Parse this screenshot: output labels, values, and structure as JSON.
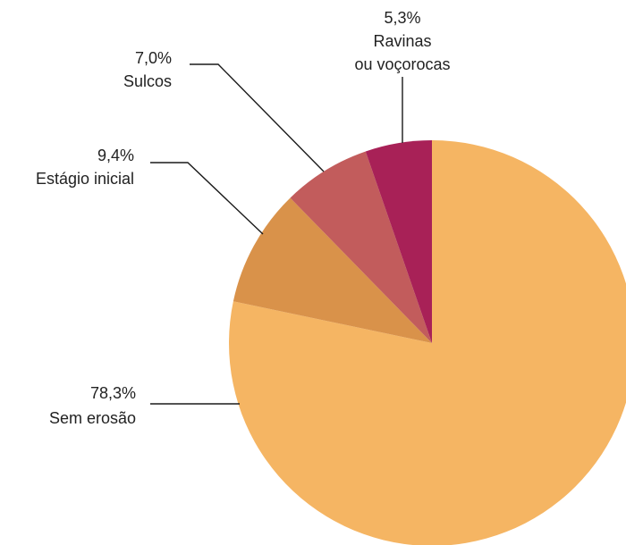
{
  "chart_data": {
    "type": "pie",
    "title": "",
    "slices": [
      {
        "pct_label": "78,3%",
        "name": "Sem erosão",
        "value": 78.3,
        "color": "#F5B563"
      },
      {
        "pct_label": "9,4%",
        "name": "Estágio inicial",
        "value": 9.4,
        "color": "#D9924A"
      },
      {
        "pct_label": "7,0%",
        "name": "Sulcos",
        "value": 7.0,
        "color": "#C25C5C"
      },
      {
        "pct_label": "5,3%",
        "name": "Ravinas ou voçorocas",
        "name_lines": [
          "Ravinas",
          "ou voçorocas"
        ],
        "value": 5.3,
        "color": "#A82157"
      }
    ],
    "start": "12 o'clock",
    "direction": "clockwise",
    "legend": "none (direct labels with leader lines)"
  }
}
